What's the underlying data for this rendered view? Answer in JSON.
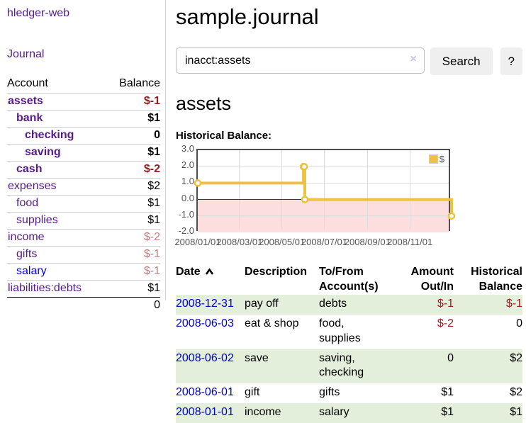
{
  "app": {
    "title": "hledger-web"
  },
  "sidebar": {
    "journal_link": "Journal",
    "table": {
      "headers": {
        "account": "Account",
        "balance": "Balance"
      },
      "rows": [
        {
          "name": "assets",
          "balance": "$-1",
          "indent": 1,
          "bold": true,
          "neg": "strong",
          "link": "purple"
        },
        {
          "name": "bank",
          "balance": "$1",
          "indent": 2,
          "bold": true,
          "neg": "",
          "link": "purple"
        },
        {
          "name": "checking",
          "balance": "0",
          "indent": 3,
          "bold": true,
          "neg": "",
          "link": "purple"
        },
        {
          "name": "saving",
          "balance": "$1",
          "indent": 3,
          "bold": true,
          "neg": "",
          "link": "purple"
        },
        {
          "name": "cash",
          "balance": "$-2",
          "indent": 2,
          "bold": true,
          "neg": "strong",
          "link": "purple"
        },
        {
          "name": "expenses",
          "balance": "$2",
          "indent": 1,
          "bold": false,
          "neg": "",
          "link": "purple"
        },
        {
          "name": "food",
          "balance": "$1",
          "indent": 2,
          "bold": false,
          "neg": "",
          "link": "purple"
        },
        {
          "name": "supplies",
          "balance": "$1",
          "indent": 2,
          "bold": false,
          "neg": "",
          "link": "purple"
        },
        {
          "name": "income",
          "balance": "$-2",
          "indent": 1,
          "bold": false,
          "neg": "soft",
          "link": "purple"
        },
        {
          "name": "gifts",
          "balance": "$-1",
          "indent": 2,
          "bold": false,
          "neg": "soft",
          "link": "purple"
        },
        {
          "name": "salary",
          "balance": "$-1",
          "indent": 2,
          "bold": false,
          "neg": "soft",
          "link": "blue"
        },
        {
          "name": "liabilities:debts",
          "balance": "$1",
          "indent": 1,
          "bold": false,
          "neg": "",
          "link": "purple"
        }
      ],
      "total": "0"
    }
  },
  "header": {
    "title": "sample.journal"
  },
  "search": {
    "value": "inacct:assets",
    "clear_icon": "×",
    "button": "Search",
    "help_button": "?"
  },
  "account_page": {
    "heading": "assets",
    "chart_label": "Historical Balance:"
  },
  "chart_data": {
    "type": "line",
    "step": true,
    "title": "Historical Balance:",
    "series": [
      {
        "name": "$",
        "color": "#edc240",
        "points": [
          {
            "date": "2008-01-01",
            "value": 1
          },
          {
            "date": "2008-06-01",
            "value": 2
          },
          {
            "date": "2008-06-02",
            "value": 2
          },
          {
            "date": "2008-06-03",
            "value": 0
          },
          {
            "date": "2008-12-31",
            "value": -1
          }
        ]
      }
    ],
    "xrange": [
      "2008-01-01",
      "2008-12-31"
    ],
    "ylim": [
      -2,
      3
    ],
    "yticks": [
      "3.0",
      "2.0",
      "1.0",
      "0.0",
      "-1.0",
      "-2.0"
    ],
    "xticks": [
      {
        "label": "2008/01/01",
        "date": "2008-01-01"
      },
      {
        "label": "2008/03/01",
        "date": "2008-03-01"
      },
      {
        "label": "2008/05/01",
        "date": "2008-05-01"
      },
      {
        "label": "2008/07/01",
        "date": "2008-07-01"
      },
      {
        "label": "2008/09/01",
        "date": "2008-09-01"
      },
      {
        "label": "2008/11/01",
        "date": "2008-11-01"
      }
    ],
    "legend_position": "top-right",
    "grid": true,
    "negative_fill": "#fcdede",
    "zero_line_color": "#8b1a1a"
  },
  "register": {
    "headers": {
      "date": "Date",
      "description": "Description",
      "accounts": "To/From Account(s)",
      "amount": "Amount Out/In",
      "balance": "Historical Balance"
    },
    "rows": [
      {
        "date": "2008-12-31",
        "description": "pay off",
        "accounts": "debts",
        "amount": "$-1",
        "amount_neg": true,
        "balance": "$-1",
        "balance_neg": true
      },
      {
        "date": "2008-06-03",
        "description": "eat & shop",
        "accounts": "food, supplies",
        "amount": "$-2",
        "amount_neg": true,
        "balance": "0",
        "balance_neg": false
      },
      {
        "date": "2008-06-02",
        "description": "save",
        "accounts": "saving, checking",
        "amount": "0",
        "amount_neg": false,
        "balance": "$2",
        "balance_neg": false
      },
      {
        "date": "2008-06-01",
        "description": "gift",
        "accounts": "gifts",
        "amount": "$1",
        "amount_neg": false,
        "balance": "$2",
        "balance_neg": false
      },
      {
        "date": "2008-01-01",
        "description": "income",
        "accounts": "salary",
        "amount": "$1",
        "amount_neg": false,
        "balance": "$1",
        "balance_neg": false
      }
    ]
  }
}
